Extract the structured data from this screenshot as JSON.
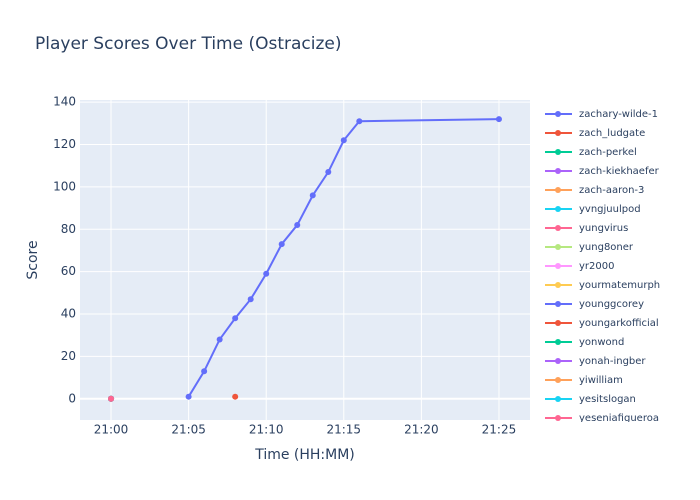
{
  "chart_data": {
    "type": "line",
    "title": "Player Scores Over Time (Ostracize)",
    "x_label": "Time (HH:MM)",
    "y_label": "Score",
    "xlim": [
      "20:58",
      "21:27"
    ],
    "xticks": [
      "21:00",
      "21:05",
      "21:10",
      "21:15",
      "21:20",
      "21:25"
    ],
    "ylim": [
      -10,
      141
    ],
    "yticks": [
      0,
      20,
      40,
      60,
      80,
      100,
      120,
      140
    ],
    "grid": true,
    "series": [
      {
        "name": "zachary-wilde-1",
        "color": "#636efa",
        "x": [
          "21:05",
          "21:06",
          "21:07",
          "21:08",
          "21:09",
          "21:10",
          "21:11",
          "21:12",
          "21:13",
          "21:14",
          "21:15",
          "21:16",
          "21:25"
        ],
        "values": [
          1,
          13,
          28,
          38,
          47,
          59,
          73,
          82,
          96,
          107,
          122,
          131,
          132
        ]
      },
      {
        "name": "zach_ludgate",
        "color": "#EF553B",
        "x": [
          "21:08"
        ],
        "values": [
          1
        ]
      },
      {
        "name": "zach-perkel",
        "color": "#00cc96",
        "x": [
          "21:00"
        ],
        "values": [
          0
        ]
      },
      {
        "name": "zach-kiekhaefer",
        "color": "#ab63fa",
        "x": [
          "21:00"
        ],
        "values": [
          0
        ]
      },
      {
        "name": "zach-aaron-3",
        "color": "#FFA15A",
        "x": [
          "21:00"
        ],
        "values": [
          0
        ]
      },
      {
        "name": "yvngjuulpod",
        "color": "#19d3f3",
        "x": [
          "21:00"
        ],
        "values": [
          0
        ]
      },
      {
        "name": "yungvirus",
        "color": "#FF6692",
        "x": [
          "21:00"
        ],
        "values": [
          0
        ]
      },
      {
        "name": "yung8oner",
        "color": "#B6E880",
        "x": [
          "21:00"
        ],
        "values": [
          0
        ]
      },
      {
        "name": "yr2000",
        "color": "#FF97FF",
        "x": [
          "21:00"
        ],
        "values": [
          0
        ]
      },
      {
        "name": "yourmatemurph",
        "color": "#FECB52",
        "x": [
          "21:00"
        ],
        "values": [
          0
        ]
      },
      {
        "name": "younggcorey",
        "color": "#636efa",
        "x": [
          "21:00"
        ],
        "values": [
          0
        ]
      },
      {
        "name": "youngarkofficial",
        "color": "#EF553B",
        "x": [
          "21:00"
        ],
        "values": [
          0
        ]
      },
      {
        "name": "yonwond",
        "color": "#00cc96",
        "x": [
          "21:00"
        ],
        "values": [
          0
        ]
      },
      {
        "name": "yonah-ingber",
        "color": "#ab63fa",
        "x": [
          "21:00"
        ],
        "values": [
          0
        ]
      },
      {
        "name": "yiwilliam",
        "color": "#FFA15A",
        "x": [
          "21:00"
        ],
        "values": [
          0
        ]
      },
      {
        "name": "yesitslogan",
        "color": "#19d3f3",
        "x": [
          "21:00"
        ],
        "values": [
          0
        ]
      },
      {
        "name": "yeseniafigueroa",
        "color": "#FF6692",
        "x": [
          "21:00"
        ],
        "values": [
          0
        ]
      }
    ]
  }
}
